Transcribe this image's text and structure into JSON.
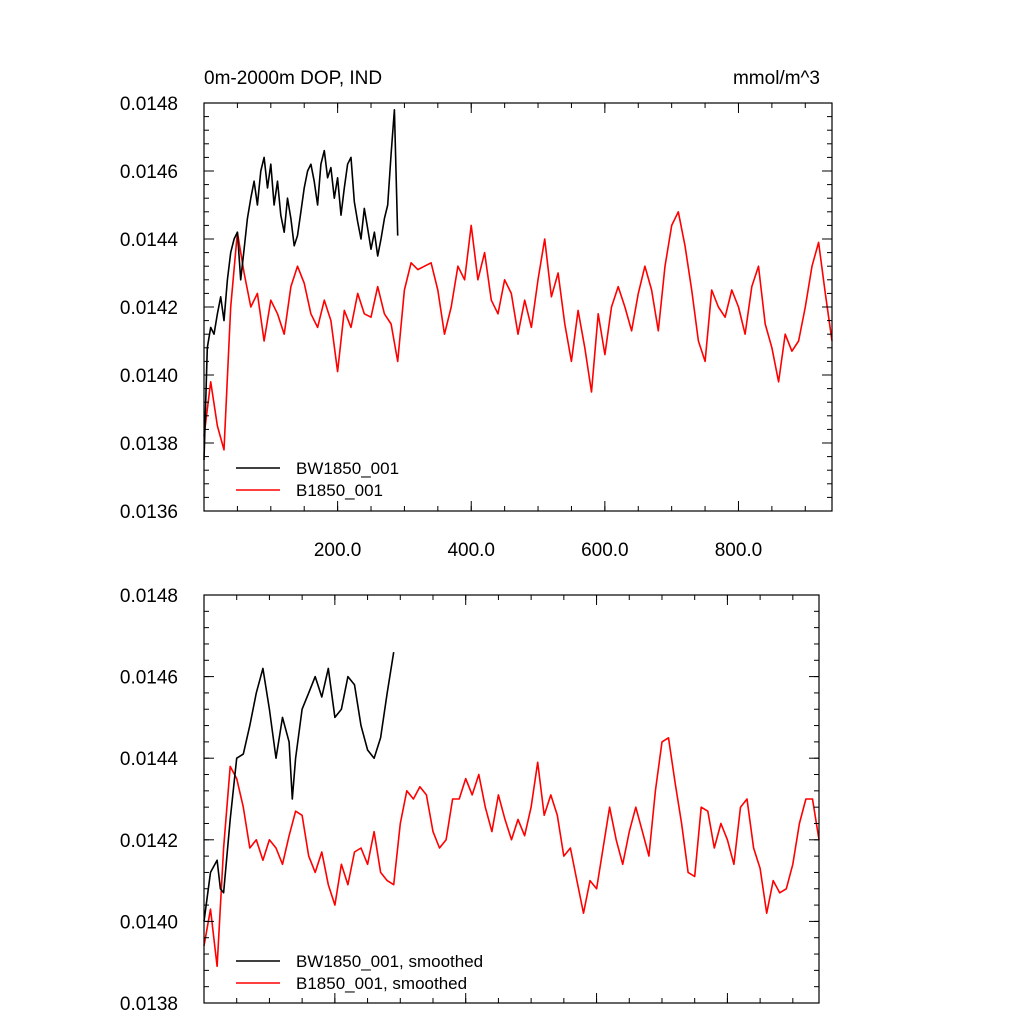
{
  "chart_data": [
    {
      "type": "line",
      "title_left": "0m-2000m DOP, IND",
      "title_right": "mmol/m^3",
      "xlim": [
        0,
        940
      ],
      "ylim": [
        0.0136,
        0.0148
      ],
      "xticks": [
        200,
        400,
        600,
        800
      ],
      "xticklabels": [
        "200.0",
        "400.0",
        "600.0",
        "800.0"
      ],
      "yticks": [
        0.0136,
        0.0138,
        0.014,
        0.0142,
        0.0144,
        0.0146,
        0.0148
      ],
      "yticklabels": [
        "0.0136",
        "0.0138",
        "0.0140",
        "0.0142",
        "0.0144",
        "0.0146",
        "0.0148"
      ],
      "legend_position": "bottom-left",
      "series": [
        {
          "name": "BW1850_001",
          "color": "#000000",
          "x": [
            0,
            5,
            10,
            15,
            20,
            25,
            30,
            35,
            40,
            45,
            50,
            55,
            60,
            65,
            70,
            75,
            80,
            85,
            90,
            95,
            100,
            105,
            110,
            115,
            120,
            125,
            130,
            135,
            140,
            145,
            150,
            155,
            160,
            165,
            170,
            175,
            180,
            185,
            190,
            195,
            200,
            205,
            210,
            215,
            220,
            225,
            230,
            235,
            240,
            245,
            250,
            255,
            260,
            265,
            270,
            275,
            280,
            285,
            290
          ],
          "values": [
            0.01375,
            0.01408,
            0.01414,
            0.01412,
            0.01418,
            0.01423,
            0.01416,
            0.01428,
            0.01436,
            0.0144,
            0.01442,
            0.01428,
            0.01437,
            0.01446,
            0.01452,
            0.01457,
            0.0145,
            0.0146,
            0.01464,
            0.01455,
            0.01462,
            0.0145,
            0.01457,
            0.01447,
            0.01442,
            0.01452,
            0.01446,
            0.01438,
            0.01441,
            0.01448,
            0.01455,
            0.0146,
            0.01462,
            0.01457,
            0.0145,
            0.01462,
            0.01466,
            0.01458,
            0.01461,
            0.01452,
            0.01458,
            0.01447,
            0.01455,
            0.01462,
            0.01464,
            0.01451,
            0.01445,
            0.0144,
            0.01449,
            0.01443,
            0.01437,
            0.01442,
            0.01435,
            0.0144,
            0.01446,
            0.0145,
            0.01465,
            0.01478,
            0.01441
          ]
        },
        {
          "name": "B1850_001",
          "color": "#ff0000",
          "x": [
            0,
            10,
            20,
            30,
            40,
            50,
            60,
            70,
            80,
            90,
            100,
            110,
            120,
            130,
            140,
            150,
            160,
            170,
            180,
            190,
            200,
            210,
            220,
            230,
            240,
            250,
            260,
            270,
            280,
            290,
            300,
            310,
            320,
            330,
            340,
            350,
            360,
            370,
            380,
            390,
            400,
            410,
            420,
            430,
            440,
            450,
            460,
            470,
            480,
            490,
            500,
            510,
            520,
            530,
            540,
            550,
            560,
            570,
            580,
            590,
            600,
            610,
            620,
            630,
            640,
            650,
            660,
            670,
            680,
            690,
            700,
            710,
            720,
            730,
            740,
            750,
            760,
            770,
            780,
            790,
            800,
            810,
            820,
            830,
            840,
            850,
            860,
            870,
            880,
            890,
            900,
            910,
            920,
            930,
            940
          ],
          "values": [
            0.01382,
            0.01398,
            0.01385,
            0.01378,
            0.0142,
            0.01442,
            0.0143,
            0.0142,
            0.01424,
            0.0141,
            0.01422,
            0.01418,
            0.01412,
            0.01426,
            0.01432,
            0.01427,
            0.01418,
            0.01414,
            0.01422,
            0.01416,
            0.01401,
            0.01419,
            0.01414,
            0.01424,
            0.01418,
            0.01417,
            0.01426,
            0.01418,
            0.01415,
            0.01404,
            0.01425,
            0.01433,
            0.01431,
            0.01432,
            0.01433,
            0.01425,
            0.01412,
            0.0142,
            0.01432,
            0.01428,
            0.01444,
            0.01428,
            0.01436,
            0.01422,
            0.01418,
            0.01428,
            0.01424,
            0.01412,
            0.01422,
            0.01414,
            0.01428,
            0.0144,
            0.01423,
            0.0143,
            0.01415,
            0.01404,
            0.01419,
            0.01408,
            0.01395,
            0.01418,
            0.01406,
            0.0142,
            0.01426,
            0.0142,
            0.01413,
            0.01424,
            0.01432,
            0.01425,
            0.01413,
            0.01432,
            0.01444,
            0.01448,
            0.01438,
            0.01425,
            0.0141,
            0.01404,
            0.01425,
            0.0142,
            0.01417,
            0.01425,
            0.0142,
            0.01412,
            0.01426,
            0.01432,
            0.01415,
            0.01408,
            0.01398,
            0.01412,
            0.01407,
            0.0141,
            0.0142,
            0.01432,
            0.01439,
            0.01424,
            0.0141
          ]
        }
      ]
    },
    {
      "type": "line",
      "xlim": [
        0,
        940
      ],
      "ylim": [
        0.0138,
        0.0148
      ],
      "yticks": [
        0.0138,
        0.014,
        0.0142,
        0.0144,
        0.0146,
        0.0148
      ],
      "yticklabels": [
        "0.0138",
        "0.0140",
        "0.0142",
        "0.0144",
        "0.0146",
        "0.0148"
      ],
      "xticks": [
        200,
        400,
        600,
        800
      ],
      "xticklabels": [],
      "legend_position": "bottom-left",
      "series": [
        {
          "name": "BW1850_001, smoothed",
          "color": "#000000",
          "x": [
            0,
            10,
            20,
            25,
            30,
            40,
            50,
            60,
            70,
            80,
            90,
            100,
            110,
            120,
            130,
            135,
            140,
            150,
            160,
            170,
            180,
            190,
            200,
            210,
            220,
            230,
            240,
            250,
            260,
            270,
            280,
            290
          ],
          "values": [
            0.014,
            0.01412,
            0.01415,
            0.01408,
            0.01407,
            0.01425,
            0.0144,
            0.01441,
            0.01448,
            0.01456,
            0.01462,
            0.01452,
            0.0144,
            0.0145,
            0.01444,
            0.0143,
            0.0144,
            0.01452,
            0.01456,
            0.0146,
            0.01455,
            0.01462,
            0.0145,
            0.01452,
            0.0146,
            0.01458,
            0.01448,
            0.01442,
            0.0144,
            0.01445,
            0.01456,
            0.01466
          ]
        },
        {
          "name": "B1850_001, smoothed",
          "color": "#ff0000",
          "x": [
            0,
            10,
            20,
            30,
            40,
            50,
            60,
            70,
            80,
            90,
            100,
            110,
            120,
            130,
            140,
            150,
            160,
            170,
            180,
            190,
            200,
            210,
            220,
            230,
            240,
            250,
            260,
            270,
            280,
            290,
            300,
            310,
            320,
            330,
            340,
            350,
            360,
            370,
            380,
            390,
            400,
            410,
            420,
            430,
            440,
            450,
            460,
            470,
            480,
            490,
            500,
            510,
            520,
            530,
            540,
            550,
            560,
            570,
            580,
            590,
            600,
            610,
            620,
            630,
            640,
            650,
            660,
            670,
            680,
            690,
            700,
            710,
            720,
            730,
            740,
            750,
            760,
            770,
            780,
            790,
            800,
            810,
            820,
            830,
            840,
            850,
            860,
            870,
            880,
            890,
            900,
            910,
            920,
            930,
            940
          ],
          "values": [
            0.01394,
            0.01403,
            0.01389,
            0.01418,
            0.01438,
            0.01435,
            0.01428,
            0.01418,
            0.0142,
            0.01415,
            0.0142,
            0.01418,
            0.01414,
            0.01421,
            0.01427,
            0.01426,
            0.01416,
            0.01412,
            0.01417,
            0.01409,
            0.01404,
            0.01414,
            0.01409,
            0.01417,
            0.01418,
            0.01414,
            0.01422,
            0.01412,
            0.0141,
            0.01409,
            0.01424,
            0.01432,
            0.0143,
            0.01433,
            0.01431,
            0.01422,
            0.01418,
            0.0142,
            0.0143,
            0.0143,
            0.01435,
            0.01431,
            0.01436,
            0.01428,
            0.01422,
            0.01431,
            0.01425,
            0.0142,
            0.01425,
            0.01421,
            0.01428,
            0.01439,
            0.01426,
            0.01431,
            0.01426,
            0.01416,
            0.01418,
            0.0141,
            0.01402,
            0.0141,
            0.01408,
            0.01418,
            0.01428,
            0.0142,
            0.01414,
            0.01422,
            0.01428,
            0.01422,
            0.01416,
            0.01432,
            0.01444,
            0.01445,
            0.01434,
            0.01424,
            0.01412,
            0.01411,
            0.01428,
            0.01427,
            0.01418,
            0.01424,
            0.0142,
            0.01414,
            0.01428,
            0.0143,
            0.01418,
            0.01413,
            0.01402,
            0.0141,
            0.01407,
            0.01408,
            0.01414,
            0.01424,
            0.0143,
            0.0143,
            0.0142
          ]
        }
      ]
    }
  ]
}
